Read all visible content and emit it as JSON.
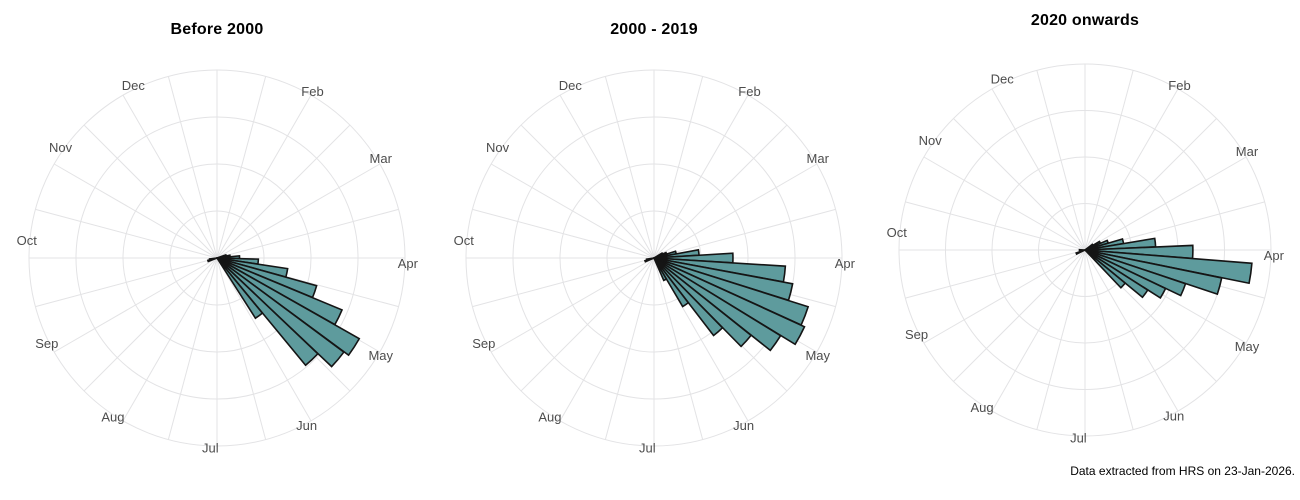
{
  "caption": "Data extracted from HRS on 23-Jan-2026.",
  "colors": {
    "petal_fill": "#5E9B9D",
    "petal_stroke": "#151515",
    "grid": "#e3e3e5",
    "month_label": "#4d4d4d",
    "title": "#000000",
    "background": "#ffffff"
  },
  "chart_data": {
    "type": "bar",
    "coord": "polar",
    "note": "Circular (rose) histograms of event dates binned in ~weekly sectors; radial axis unlabeled, lengths are fractions of outer grid ring",
    "months": {
      "labels": [
        "Feb",
        "Mar",
        "Apr",
        "May",
        "Jun",
        "Jul",
        "Aug",
        "Sep",
        "Oct",
        "Nov",
        "Dec"
      ],
      "angles_deg": [
        30,
        59,
        92,
        121,
        152,
        182,
        213,
        243,
        275,
        305,
        334
      ]
    },
    "grid": {
      "ring_fractions": [
        0.25,
        0.5,
        0.75,
        1.0
      ],
      "spoke_step_deg": 15,
      "bin_width_deg": 6.9
    },
    "panels": [
      {
        "title": "Before 2000",
        "wedges": [
          {
            "angle_deg": 74,
            "length_frac": 0.05
          },
          {
            "angle_deg": 81,
            "length_frac": 0.07
          },
          {
            "angle_deg": 88,
            "length_frac": 0.12
          },
          {
            "angle_deg": 95,
            "length_frac": 0.22
          },
          {
            "angle_deg": 102,
            "length_frac": 0.38
          },
          {
            "angle_deg": 109,
            "length_frac": 0.55
          },
          {
            "angle_deg": 116,
            "length_frac": 0.72
          },
          {
            "angle_deg": 123,
            "length_frac": 0.87
          },
          {
            "angle_deg": 130,
            "length_frac": 0.84
          },
          {
            "angle_deg": 137,
            "length_frac": 0.74
          },
          {
            "angle_deg": 144,
            "length_frac": 0.38
          },
          {
            "angle_deg": 252,
            "length_frac": 0.05
          },
          {
            "angle_deg": 259,
            "length_frac": 0.04
          }
        ]
      },
      {
        "title": "2000 - 2019",
        "wedges": [
          {
            "angle_deg": 62,
            "length_frac": 0.05
          },
          {
            "angle_deg": 69,
            "length_frac": 0.07
          },
          {
            "angle_deg": 76,
            "length_frac": 0.12
          },
          {
            "angle_deg": 83,
            "length_frac": 0.24
          },
          {
            "angle_deg": 90,
            "length_frac": 0.42
          },
          {
            "angle_deg": 97,
            "length_frac": 0.7
          },
          {
            "angle_deg": 104,
            "length_frac": 0.75
          },
          {
            "angle_deg": 111,
            "length_frac": 0.86
          },
          {
            "angle_deg": 118,
            "length_frac": 0.88
          },
          {
            "angle_deg": 125,
            "length_frac": 0.79
          },
          {
            "angle_deg": 132,
            "length_frac": 0.66
          },
          {
            "angle_deg": 139,
            "length_frac": 0.52
          },
          {
            "angle_deg": 146,
            "length_frac": 0.3
          },
          {
            "angle_deg": 153,
            "length_frac": 0.13
          },
          {
            "angle_deg": 250,
            "length_frac": 0.05
          },
          {
            "angle_deg": 258,
            "length_frac": 0.04
          }
        ]
      },
      {
        "title": "2020 onwards",
        "wedges": [
          {
            "angle_deg": 56,
            "length_frac": 0.05
          },
          {
            "angle_deg": 63,
            "length_frac": 0.09
          },
          {
            "angle_deg": 70,
            "length_frac": 0.13
          },
          {
            "angle_deg": 77,
            "length_frac": 0.21
          },
          {
            "angle_deg": 84,
            "length_frac": 0.38
          },
          {
            "angle_deg": 91,
            "length_frac": 0.58
          },
          {
            "angle_deg": 98,
            "length_frac": 0.9
          },
          {
            "angle_deg": 105,
            "length_frac": 0.75
          },
          {
            "angle_deg": 112,
            "length_frac": 0.57
          },
          {
            "angle_deg": 119,
            "length_frac": 0.48
          },
          {
            "angle_deg": 126,
            "length_frac": 0.4
          },
          {
            "angle_deg": 133,
            "length_frac": 0.28
          },
          {
            "angle_deg": 248,
            "length_frac": 0.05
          },
          {
            "angle_deg": 270,
            "length_frac": 0.03
          }
        ]
      }
    ]
  }
}
